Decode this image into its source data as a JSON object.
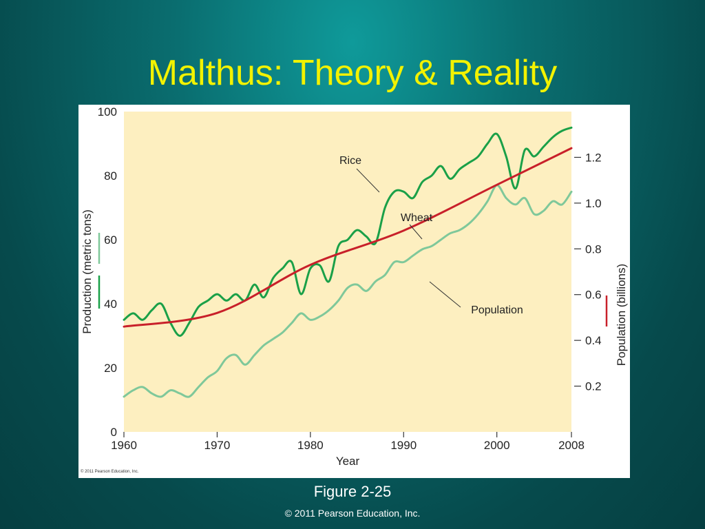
{
  "slide": {
    "title": "Malthus: Theory & Reality",
    "caption": "Figure 2-25",
    "copyright": "© 2011 Pearson Education, Inc."
  },
  "colors": {
    "background": "#0a6e70",
    "title": "#f2f200",
    "plot_bg": "#fdefc0",
    "rice": "#1aa048",
    "wheat": "#7fc89a",
    "population": "#c8202a"
  },
  "chart_data": {
    "type": "line",
    "image_credit": "© 2011 Pearson Education, Inc.",
    "xlabel": "Year",
    "ylabel": "Production (metric tons)",
    "ylabel_right": "Population (billions)",
    "xlim": [
      1960,
      2008
    ],
    "ylim": [
      0,
      100
    ],
    "ylim_right": [
      0,
      1.4
    ],
    "x_ticks": [
      1960,
      1970,
      1980,
      1990,
      2000,
      2008
    ],
    "y_ticks": [
      0,
      20,
      40,
      60,
      80,
      100
    ],
    "y_ticks_right": [
      "0.2",
      "0.4",
      "0.6",
      "0.8",
      "1.0",
      "1.2"
    ],
    "grid": false,
    "annotations": [
      {
        "text": "Rice",
        "series": "Rice"
      },
      {
        "text": "Wheat",
        "series": "Wheat"
      },
      {
        "text": "Population",
        "series": "Population"
      }
    ],
    "series": [
      {
        "name": "Rice",
        "axis": "left",
        "x": [
          1960,
          1961,
          1962,
          1963,
          1964,
          1965,
          1966,
          1967,
          1968,
          1969,
          1970,
          1971,
          1972,
          1973,
          1974,
          1975,
          1976,
          1977,
          1978,
          1979,
          1980,
          1981,
          1982,
          1983,
          1984,
          1985,
          1986,
          1987,
          1988,
          1989,
          1990,
          1991,
          1992,
          1993,
          1994,
          1995,
          1996,
          1997,
          1998,
          1999,
          2000,
          2001,
          2002,
          2003,
          2004,
          2005,
          2006,
          2007,
          2008
        ],
        "values": [
          35,
          37,
          35,
          38,
          40,
          34,
          30,
          34,
          39,
          41,
          43,
          41,
          43,
          41,
          46,
          42,
          48,
          51,
          53,
          43,
          51,
          52,
          47,
          58,
          60,
          63,
          61,
          59,
          70,
          75,
          75,
          73,
          78,
          80,
          83,
          79,
          82,
          84,
          86,
          90,
          93,
          86,
          76,
          88,
          86,
          89,
          92,
          94,
          95
        ]
      },
      {
        "name": "Wheat",
        "axis": "left",
        "x": [
          1960,
          1961,
          1962,
          1963,
          1964,
          1965,
          1966,
          1967,
          1968,
          1969,
          1970,
          1971,
          1972,
          1973,
          1974,
          1975,
          1976,
          1977,
          1978,
          1979,
          1980,
          1981,
          1982,
          1983,
          1984,
          1985,
          1986,
          1987,
          1988,
          1989,
          1990,
          1991,
          1992,
          1993,
          1994,
          1995,
          1996,
          1997,
          1998,
          1999,
          2000,
          2001,
          2002,
          2003,
          2004,
          2005,
          2006,
          2007,
          2008
        ],
        "values": [
          11,
          13,
          14,
          12,
          11,
          13,
          12,
          11,
          14,
          17,
          19,
          23,
          24,
          21,
          24,
          27,
          29,
          31,
          34,
          37,
          35,
          36,
          38,
          41,
          45,
          46,
          44,
          47,
          49,
          53,
          53,
          55,
          57,
          58,
          60,
          62,
          63,
          65,
          68,
          72,
          77,
          73,
          71,
          73,
          68,
          69,
          72,
          71,
          75
        ]
      },
      {
        "name": "Population",
        "axis": "right",
        "x": [
          1960,
          1970,
          1980,
          1990,
          2000,
          2008
        ],
        "values": [
          0.46,
          0.52,
          0.73,
          0.88,
          1.08,
          1.24
        ]
      }
    ]
  }
}
